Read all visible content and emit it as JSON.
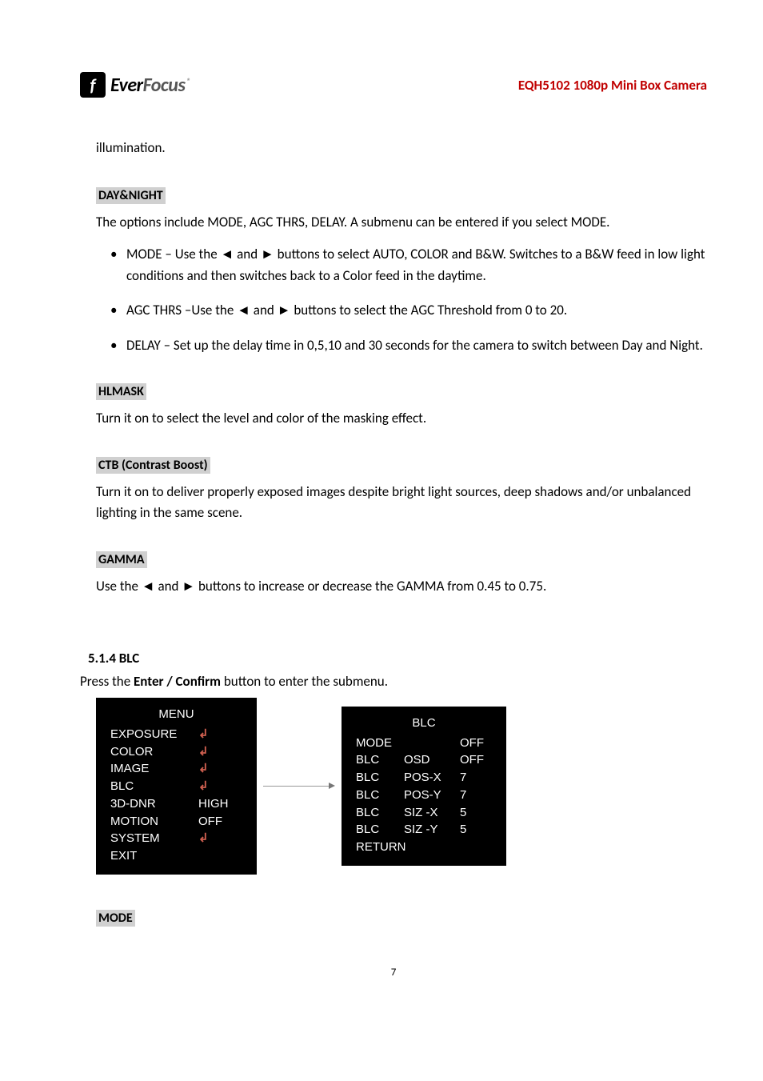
{
  "header": {
    "logo_brand_1": "Ever",
    "logo_brand_2": "Focus",
    "doc_title": "EQH5102 1080p Mini Box Camera"
  },
  "intro_text": "illumination.",
  "daynight": {
    "label": "DAY&NIGHT",
    "desc": "The options include MODE, AGC THRS, DELAY. A submenu can be entered if you select MODE.",
    "items": [
      "MODE – Use the ◄ and ► buttons to select AUTO, COLOR and B&W. Switches to a B&W feed in low light conditions and then switches back to a Color feed in the daytime.",
      "AGC THRS –Use the ◄ and ► buttons to select the AGC Threshold from 0 to 20.",
      "DELAY – Set up the delay time in 0,5,10 and 30 seconds for the camera to switch between Day and Night."
    ]
  },
  "hlmask": {
    "label": "HLMASK",
    "desc": "Turn it on to select the level and color of the masking effect."
  },
  "ctb": {
    "label": "CTB (Contrast Boost)",
    "desc": "Turn it on to deliver properly exposed images despite bright light sources, deep shadows and/or unbalanced lighting in the same scene."
  },
  "gamma": {
    "label": "GAMMA",
    "desc": "Use the ◄ and ► buttons to increase or decrease the GAMMA from 0.45 to 0.75."
  },
  "blc_section": {
    "heading": "5.1.4    BLC",
    "press_1": "Press the ",
    "press_bold": "Enter / Confirm",
    "press_2": " button to enter the submenu."
  },
  "menu1": {
    "title": "MENU",
    "rows": [
      {
        "l": "EXPOSURE",
        "v": "↲",
        "enter": true
      },
      {
        "l": "COLOR",
        "v": "↲",
        "enter": true
      },
      {
        "l": "IMAGE",
        "v": "↲",
        "enter": true
      },
      {
        "l": "BLC",
        "v": "↲",
        "enter": true
      },
      {
        "l": "3D-DNR",
        "v": "HIGH",
        "enter": false
      },
      {
        "l": "MOTION",
        "v": "OFF",
        "enter": false
      },
      {
        "l": "SYSTEM",
        "v": "↲",
        "enter": true
      },
      {
        "l": "EXIT",
        "v": "",
        "enter": false
      }
    ]
  },
  "menu2": {
    "title": "BLC",
    "rows": [
      {
        "c1": "MODE",
        "c2": "",
        "c3": "OFF"
      },
      {
        "c1": "BLC",
        "c2": "OSD",
        "c3": "OFF"
      },
      {
        "c1": "BLC",
        "c2": "POS-X",
        "c3": "7"
      },
      {
        "c1": "BLC",
        "c2": "POS-Y",
        "c3": "7"
      },
      {
        "c1": "BLC",
        "c2": "SIZ -X",
        "c3": "5"
      },
      {
        "c1": "BLC",
        "c2": "SIZ -Y",
        "c3": "5"
      },
      {
        "c1": "RETURN",
        "c2": "",
        "c3": ""
      }
    ]
  },
  "mode_label": "MODE",
  "page_number": "7"
}
